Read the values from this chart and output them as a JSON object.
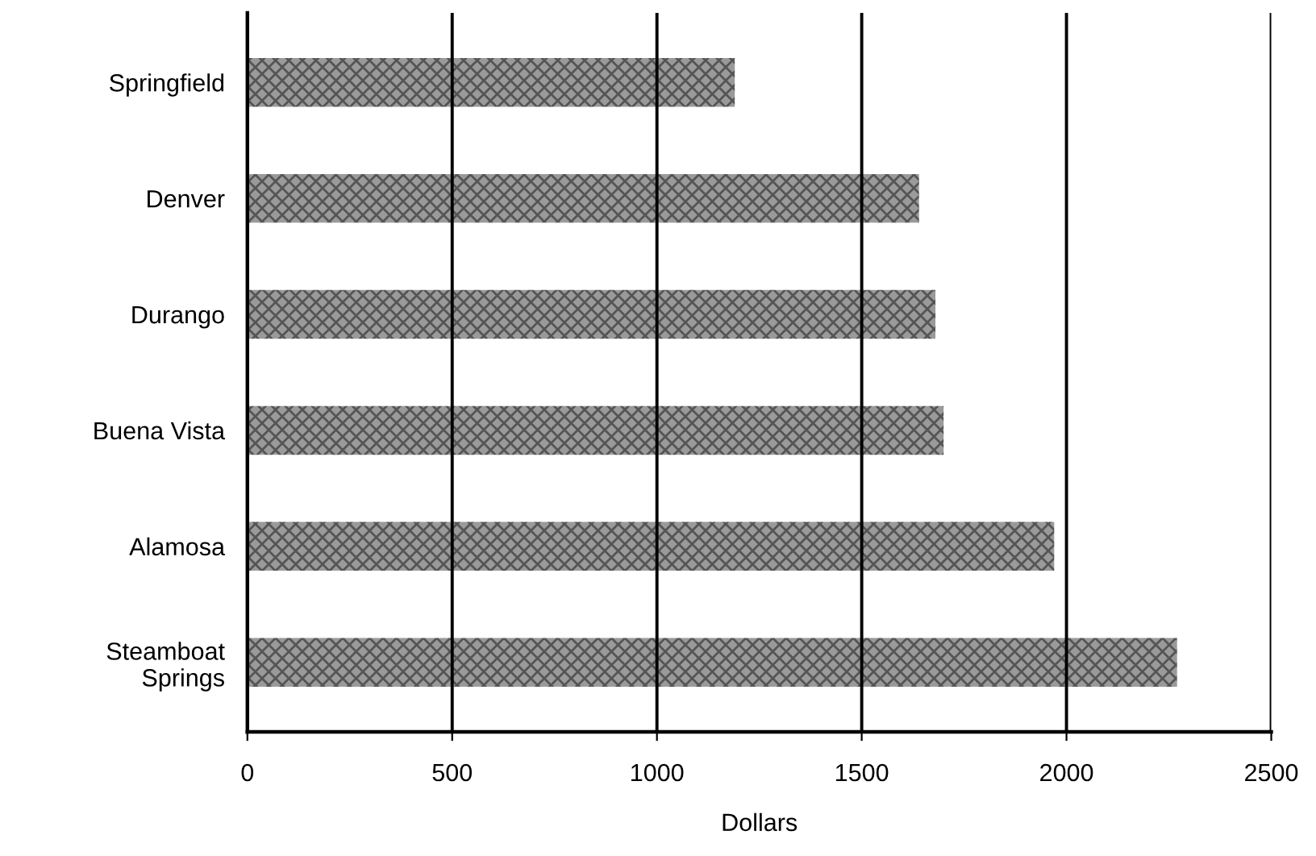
{
  "chart_data": {
    "type": "bar",
    "orientation": "horizontal",
    "xlabel": "Dollars",
    "categories": [
      "Springfield",
      "Denver",
      "Durango",
      "Buena Vista",
      "Alamosa",
      "Steamboat\nSprings"
    ],
    "values": [
      1190,
      1640,
      1680,
      1700,
      1970,
      2270
    ],
    "color": "#9a9a9a",
    "xlim": [
      0,
      2500
    ],
    "xticks": [
      0,
      500,
      1000,
      1500,
      2000,
      2500
    ],
    "grid": "x"
  }
}
